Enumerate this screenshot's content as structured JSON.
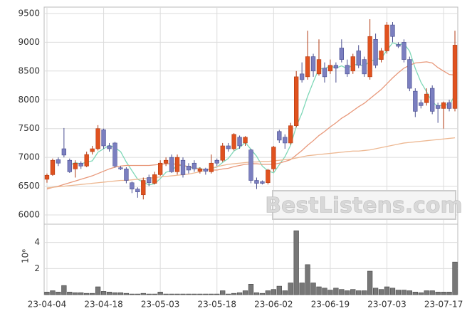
{
  "chart_data": {
    "type": "candlestick",
    "categories": [
      "23-04-04",
      null,
      null,
      null,
      null,
      null,
      null,
      null,
      null,
      null,
      "23-04-18",
      null,
      null,
      null,
      null,
      null,
      null,
      null,
      null,
      null,
      "23-05-03",
      null,
      null,
      null,
      null,
      null,
      null,
      null,
      null,
      null,
      "23-05-18",
      null,
      null,
      null,
      null,
      null,
      null,
      null,
      null,
      null,
      "23-06-02",
      null,
      null,
      null,
      null,
      null,
      null,
      null,
      null,
      null,
      "23-06-19",
      null,
      null,
      null,
      null,
      null,
      null,
      null,
      null,
      null,
      "23-07-03",
      null,
      null,
      null,
      null,
      null,
      null,
      null,
      null,
      null,
      "23-07-17",
      null,
      null
    ],
    "open": [
      6620,
      6700,
      6960,
      7150,
      6950,
      6800,
      6900,
      6850,
      7100,
      7150,
      7480,
      7200,
      7250,
      6820,
      6800,
      6560,
      6450,
      6350,
      6650,
      6550,
      6700,
      6900,
      7000,
      6750,
      6950,
      6850,
      6900,
      6760,
      6800,
      6750,
      6950,
      6950,
      7200,
      7150,
      7350,
      7250,
      7130,
      6600,
      6580,
      6560,
      6800,
      7450,
      7350,
      7250,
      7550,
      8450,
      8400,
      8750,
      8450,
      8550,
      8500,
      8600,
      8900,
      8600,
      8500,
      8850,
      8700,
      8400,
      9050,
      8700,
      8850,
      9300,
      8960,
      9000,
      8700,
      8150,
      7950,
      7950,
      8200,
      7900,
      7850,
      7950,
      7850
    ],
    "high": [
      6720,
      6980,
      7000,
      7510,
      6980,
      6950,
      6930,
      7100,
      7200,
      7560,
      7500,
      7250,
      7270,
      6850,
      6830,
      6580,
      6480,
      6650,
      6700,
      6750,
      6950,
      7000,
      7050,
      7050,
      7000,
      6900,
      6950,
      6830,
      6820,
      7050,
      6980,
      7250,
      7250,
      7420,
      7380,
      7370,
      7150,
      6650,
      6600,
      6800,
      7200,
      7480,
      7400,
      7600,
      8500,
      8650,
      9200,
      8800,
      9050,
      8650,
      8700,
      8650,
      9050,
      8700,
      8800,
      8950,
      8750,
      9400,
      9150,
      8900,
      9350,
      9350,
      9000,
      9050,
      8750,
      8200,
      8000,
      8200,
      8250,
      7950,
      7970,
      8000,
      9200
    ],
    "low": [
      6560,
      6680,
      6850,
      7000,
      6730,
      6650,
      6800,
      6830,
      7050,
      7120,
      7150,
      7100,
      6820,
      6780,
      6550,
      6380,
      6300,
      6270,
      6500,
      6530,
      6680,
      6850,
      6730,
      6700,
      6650,
      6720,
      6750,
      6720,
      6700,
      6720,
      6850,
      6920,
      7100,
      7120,
      7150,
      7200,
      6550,
      6450,
      6530,
      6530,
      6750,
      7250,
      7150,
      7220,
      7520,
      8300,
      8350,
      8400,
      8420,
      8300,
      8450,
      8300,
      8650,
      8400,
      8450,
      8550,
      8400,
      8350,
      8550,
      8650,
      8800,
      9000,
      8900,
      8650,
      8150,
      7700,
      7850,
      7900,
      7750,
      7600,
      7500,
      7800,
      7800
    ],
    "close": [
      6690,
      6950,
      6900,
      7040,
      6750,
      6900,
      6850,
      7050,
      7150,
      7500,
      7200,
      7150,
      6850,
      6800,
      6600,
      6450,
      6400,
      6600,
      6560,
      6700,
      6900,
      6950,
      6750,
      7000,
      6700,
      6780,
      6800,
      6800,
      6760,
      6900,
      6900,
      7200,
      7150,
      7400,
      7200,
      7350,
      6600,
      6550,
      6550,
      6780,
      7180,
      7300,
      7250,
      7550,
      8400,
      8350,
      8750,
      8500,
      8700,
      8400,
      8600,
      8550,
      8700,
      8450,
      8750,
      8600,
      8450,
      9100,
      8600,
      8850,
      9300,
      9100,
      8930,
      8700,
      8200,
      7800,
      7900,
      8100,
      7800,
      7850,
      7950,
      7850,
      8950
    ],
    "up_color": "#e0521f",
    "down_color": "#7b7fc0",
    "moving_averages": [
      {
        "color": "#7fd8b8",
        "values": [
          null,
          null,
          null,
          null,
          6866,
          6908,
          6888,
          6918,
          6940,
          7090,
          7150,
          7210,
          7170,
          7100,
          6920,
          6770,
          6620,
          6570,
          6522,
          6542,
          6632,
          6742,
          6772,
          6860,
          6860,
          6836,
          6806,
          6816,
          6768,
          6808,
          6832,
          6912,
          6982,
          7110,
          7170,
          7260,
          7140,
          7020,
          6850,
          6766,
          6732,
          6872,
          7012,
          7212,
          7536,
          7770,
          8060,
          8310,
          8540,
          8540,
          8590,
          8550,
          8590,
          8540,
          8610,
          8610,
          8590,
          8670,
          8700,
          8720,
          8860,
          8990,
          8956,
          8976,
          8846,
          8546,
          8306,
          8140,
          7960,
          7890,
          7920,
          7910,
          8080
        ]
      },
      {
        "color": "#e8987a",
        "values": [
          6450,
          6480,
          6500,
          6530,
          6560,
          6590,
          6620,
          6650,
          6680,
          6720,
          6760,
          6800,
          6830,
          6850,
          6860,
          6860,
          6860,
          6860,
          6860,
          6870,
          6880,
          6890,
          6890,
          6880,
          6860,
          6840,
          6820,
          6800,
          6790,
          6780,
          6780,
          6800,
          6810,
          6840,
          6860,
          6880,
          6890,
          6890,
          6880,
          6880,
          6880,
          6900,
          6930,
          6960,
          7040,
          7120,
          7210,
          7290,
          7380,
          7450,
          7530,
          7600,
          7680,
          7740,
          7810,
          7880,
          7940,
          8020,
          8100,
          8180,
          8280,
          8380,
          8470,
          8550,
          8600,
          8640,
          8650,
          8660,
          8640,
          8560,
          8500,
          8440,
          8430
        ]
      },
      {
        "color": "#edb892",
        "values": [
          6470,
          6480,
          6490,
          6500,
          6510,
          6520,
          6530,
          6540,
          6550,
          6560,
          6570,
          6580,
          6590,
          6600,
          6600,
          6610,
          6620,
          6630,
          6640,
          6650,
          6660,
          6670,
          6680,
          6690,
          6700,
          6710,
          6730,
          6750,
          6780,
          6810,
          6840,
          6860,
          6880,
          6890,
          6900,
          6910,
          6920,
          6920,
          6930,
          6930,
          6940,
          6950,
          6960,
          6970,
          6990,
          7010,
          7030,
          7040,
          7050,
          7060,
          7070,
          7080,
          7090,
          7100,
          7110,
          7110,
          7120,
          7130,
          7150,
          7170,
          7190,
          7210,
          7230,
          7250,
          7260,
          7270,
          7280,
          7290,
          7300,
          7310,
          7320,
          7330,
          7340
        ]
      }
    ],
    "ylim": [
      5840,
      9610
    ],
    "yticks": [
      6000,
      6500,
      7000,
      7500,
      8000,
      8500,
      9000,
      9500
    ],
    "grid": true,
    "volume": {
      "axis_label": "10⁶",
      "color": "#777777",
      "values": [
        0.2,
        0.3,
        0.2,
        0.7,
        0.2,
        0.15,
        0.15,
        0.1,
        0.1,
        0.6,
        0.25,
        0.2,
        0.15,
        0.15,
        0.1,
        0.05,
        0.05,
        0.1,
        0.05,
        0.05,
        0.2,
        0.05,
        0.05,
        0.05,
        0.05,
        0.05,
        0.05,
        0.05,
        0.05,
        0.05,
        0.05,
        0.3,
        0.05,
        0.1,
        0.15,
        0.3,
        0.8,
        0.15,
        0.1,
        0.3,
        0.4,
        0.65,
        0.3,
        0.9,
        4.9,
        0.9,
        2.3,
        0.9,
        0.6,
        0.5,
        0.35,
        0.5,
        0.4,
        0.3,
        0.4,
        0.3,
        0.3,
        1.8,
        0.5,
        0.4,
        0.6,
        0.5,
        0.35,
        0.35,
        0.3,
        0.2,
        0.15,
        0.3,
        0.3,
        0.2,
        0.2,
        0.2,
        2.5
      ],
      "ylim": [
        0,
        5.4
      ],
      "yticks": [
        2,
        4
      ]
    },
    "annotation": "BestListens.com"
  }
}
